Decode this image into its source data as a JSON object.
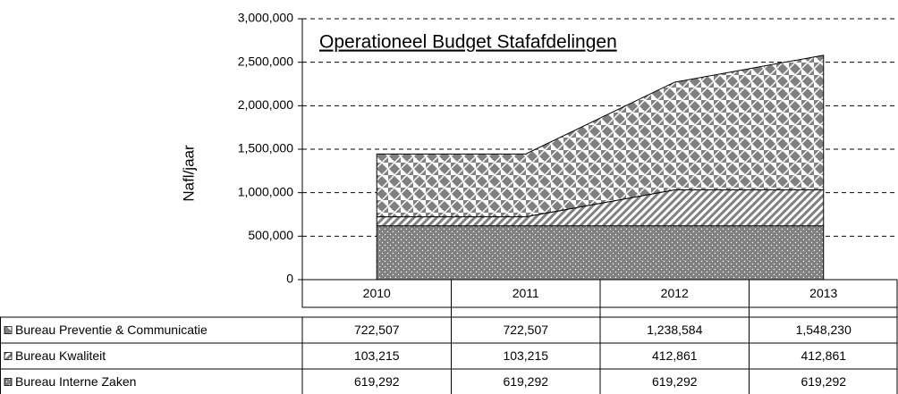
{
  "chart_data": {
    "type": "stacked_area",
    "title": "Operationeel Budget Stafafdelingen",
    "y_label": "Nafl/jaar",
    "categories": [
      "2010",
      "2011",
      "2012",
      "2013"
    ],
    "series": [
      {
        "name": "Bureau Interne Zaken",
        "color": "#808080",
        "values": [
          619292,
          619292,
          619292,
          619292
        ],
        "value_labels": [
          "619,292",
          "619,292",
          "619,292",
          "619,292"
        ]
      },
      {
        "name": "Bureau Kwaliteit",
        "color": "#808080",
        "values": [
          103215,
          103215,
          412861,
          412861
        ],
        "value_labels": [
          "103,215",
          "103,215",
          "412,861",
          "412,861"
        ]
      },
      {
        "name": "Bureau Preventie & Communicatie",
        "color": "#808080",
        "values": [
          722507,
          722507,
          1238584,
          1548230
        ],
        "value_labels": [
          "722,507",
          "722,507",
          "1,238,584",
          "1,548,230"
        ]
      }
    ],
    "ylim": [
      0,
      3000000
    ],
    "yticks": [
      0,
      {
        "value": 500000,
        "label": "500,000"
      },
      {
        "value": 1000000,
        "label": "1,000,000"
      },
      {
        "value": 1500000,
        "label": "1,500,000"
      },
      {
        "value": 2000000,
        "label": "2,000,000"
      },
      {
        "value": 2500000,
        "label": "2,500,000"
      },
      {
        "value": 3000000,
        "label": "3,000,000"
      }
    ],
    "grid": true
  }
}
